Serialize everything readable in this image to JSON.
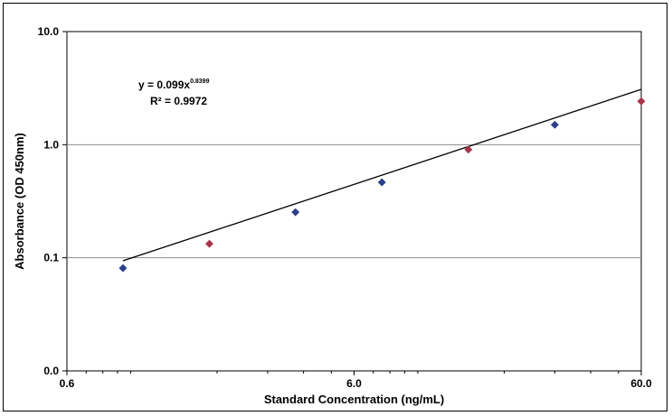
{
  "chart_data": {
    "type": "scatter",
    "xlabel": "Standard Concentration (ng/mL)",
    "ylabel": "Absorbance (OD 450nm)",
    "x_scale": "log",
    "y_scale": "log",
    "xlim": [
      0.6,
      60
    ],
    "ylim": [
      0.01,
      10
    ],
    "x_ticks": [
      {
        "value": 0.6,
        "label": "0.6"
      },
      {
        "value": 6,
        "label": "6.0"
      },
      {
        "value": 60,
        "label": "60.0"
      }
    ],
    "y_ticks": [
      {
        "value": 0.01,
        "label": "0.0"
      },
      {
        "value": 0.1,
        "label": "0.1"
      },
      {
        "value": 1,
        "label": "1.0"
      },
      {
        "value": 10,
        "label": "10.0"
      }
    ],
    "grid": {
      "horizontal": true,
      "vertical": false
    },
    "series": [
      {
        "points": [
          {
            "x": 0.94,
            "y": 0.081,
            "color": "#2b3f8c"
          },
          {
            "x": 1.88,
            "y": 0.133,
            "color": "#a8344a"
          },
          {
            "x": 3.75,
            "y": 0.253,
            "color": "#2b3f8c"
          },
          {
            "x": 7.5,
            "y": 0.465,
            "color": "#2b3f8c"
          },
          {
            "x": 15,
            "y": 0.905,
            "color": "#a8344a"
          },
          {
            "x": 30,
            "y": 1.5,
            "color": "#2b3f8c"
          },
          {
            "x": 60,
            "y": 2.42,
            "color": "#a8344a"
          }
        ]
      }
    ],
    "trendline": {
      "type": "power",
      "coefficient": 0.099,
      "exponent": 0.8399,
      "x_range": [
        0.94,
        60
      ],
      "color": "#000000"
    },
    "annotations": {
      "equation_base": "y = 0.099x",
      "equation_exponent": "0.8399",
      "r_squared": "R² = 0.9972"
    }
  }
}
